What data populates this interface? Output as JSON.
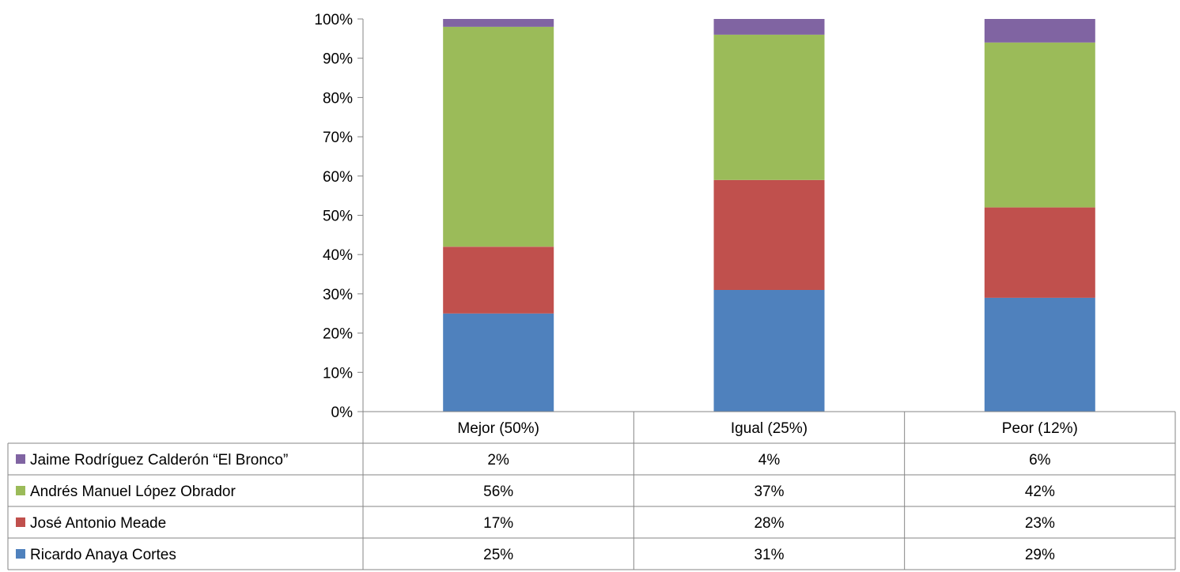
{
  "chart_data": {
    "type": "bar",
    "stacked": true,
    "percent_stacked": true,
    "categories": [
      "Mejor (50%)",
      "Igual (25%)",
      "Peor (12%)"
    ],
    "series": [
      {
        "name": "Ricardo Anaya Cortes",
        "values": [
          25,
          31,
          29
        ],
        "labels": [
          "25%",
          "31%",
          "29%"
        ],
        "color": "#4F81BD"
      },
      {
        "name": "José Antonio Meade",
        "values": [
          17,
          28,
          23
        ],
        "labels": [
          "17%",
          "28%",
          "23%"
        ],
        "color": "#C0504D"
      },
      {
        "name": "Andrés Manuel López Obrador",
        "values": [
          56,
          37,
          42
        ],
        "labels": [
          "56%",
          "37%",
          "42%"
        ],
        "color": "#9BBB59"
      },
      {
        "name": "Jaime Rodríguez Calderón “El Bronco”",
        "values": [
          2,
          4,
          6
        ],
        "labels": [
          "2%",
          "4%",
          "6%"
        ],
        "color": "#8064A2"
      }
    ],
    "yticks": [
      "0%",
      "10%",
      "20%",
      "30%",
      "40%",
      "50%",
      "60%",
      "70%",
      "80%",
      "90%",
      "100%"
    ],
    "ylim": [
      0,
      100
    ],
    "grid": false,
    "legend": "data-table"
  }
}
